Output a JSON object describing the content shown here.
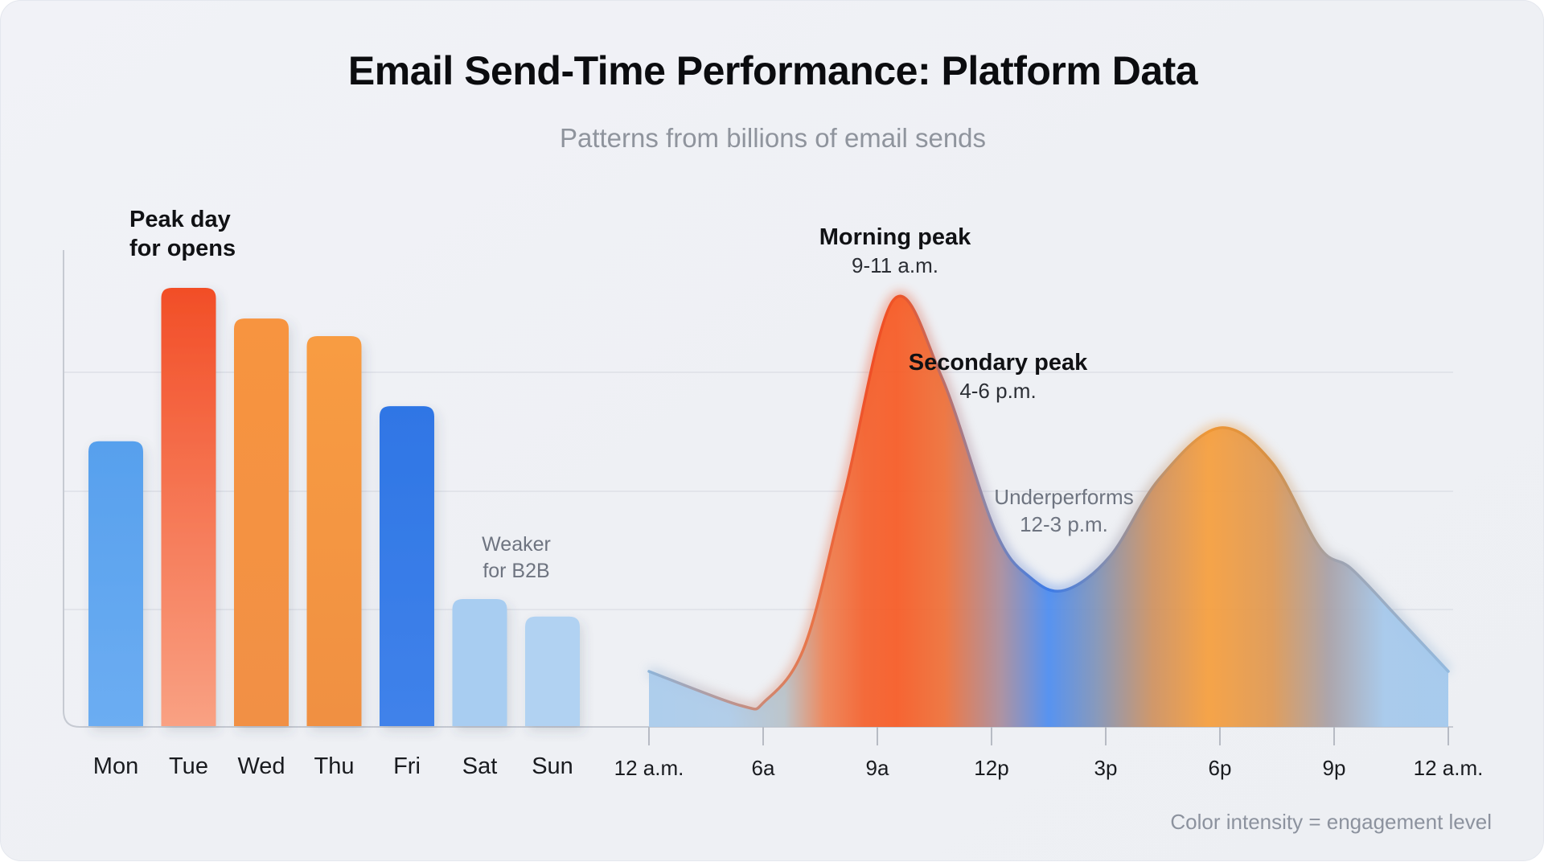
{
  "header": {
    "title": "Email Send-Time Performance: Platform Data",
    "subtitle": "Patterns from billions of email sends"
  },
  "annotations": {
    "peak_day": {
      "line1": "Peak day",
      "line2": "for opens"
    },
    "weaker": {
      "line1": "Weaker",
      "line2": "for B2B"
    },
    "morning_peak": {
      "title": "Morning peak",
      "subtitle": "9-11 a.m."
    },
    "secondary_peak": {
      "title": "Secondary peak",
      "subtitle": "4-6 p.m."
    },
    "underperforms": {
      "line1": "Underperforms",
      "line2": "12-3 p.m."
    }
  },
  "footnote": "Color intensity = engagement level",
  "colors": {
    "card_bg": "#eef0f4",
    "gridline": "#dde0e7",
    "axis": "#c6cad2",
    "tick": "#b7bbc4",
    "text_dark": "#101114",
    "text_gray": "#6e7480",
    "note_gray": "#8c929e"
  },
  "chart_data": [
    {
      "type": "bar",
      "title": "Opens by day of week",
      "categories": [
        "Mon",
        "Tue",
        "Wed",
        "Thu",
        "Fri",
        "Sat",
        "Sun"
      ],
      "values": [
        65,
        100,
        93,
        89,
        73,
        29,
        25
      ],
      "ylim": [
        0,
        100
      ],
      "grid": true,
      "annotation_peak": "Tue = peak day for opens",
      "annotation_weekend": "Sat/Sun weaker for B2B",
      "bar_gradients": [
        [
          "#57a0ed",
          "#6cadf2"
        ],
        [
          "#f24e27",
          "#f9a183"
        ],
        [
          "#f79440",
          "#f19045"
        ],
        [
          "#f89c43",
          "#f09042"
        ],
        [
          "#2f76e5",
          "#4082ea"
        ],
        [
          "#a8cdf1",
          "#a8cdf1"
        ],
        [
          "#b1d2f2",
          "#b1d2f2"
        ]
      ]
    },
    {
      "type": "area",
      "title": "Engagement by time of day",
      "x_tick_labels": [
        "12 a.m.",
        "6a",
        "9a",
        "12p",
        "3p",
        "6p",
        "9p",
        "12 a.m."
      ],
      "ylim": [
        0,
        100
      ],
      "points": [
        {
          "t": 0.0,
          "v": 13
        },
        {
          "t": 0.115,
          "v": 5
        },
        {
          "t": 0.145,
          "v": 6
        },
        {
          "t": 0.195,
          "v": 19
        },
        {
          "t": 0.245,
          "v": 55
        },
        {
          "t": 0.306,
          "v": 100
        },
        {
          "t": 0.366,
          "v": 82
        },
        {
          "t": 0.433,
          "v": 46
        },
        {
          "t": 0.477,
          "v": 35
        },
        {
          "t": 0.52,
          "v": 32
        },
        {
          "t": 0.577,
          "v": 40
        },
        {
          "t": 0.638,
          "v": 58
        },
        {
          "t": 0.713,
          "v": 70
        },
        {
          "t": 0.779,
          "v": 62
        },
        {
          "t": 0.839,
          "v": 42
        },
        {
          "t": 0.879,
          "v": 37
        },
        {
          "t": 0.94,
          "v": 25
        },
        {
          "t": 1.0,
          "v": 13
        }
      ],
      "fill_stops": [
        [
          0.0,
          "#a9cbec"
        ],
        [
          0.1,
          "#aecbe8"
        ],
        [
          0.17,
          "#b9c2c8"
        ],
        [
          0.22,
          "#ee8152"
        ],
        [
          0.27,
          "#f4602c"
        ],
        [
          0.31,
          "#f75a24"
        ],
        [
          0.37,
          "#ee7038"
        ],
        [
          0.44,
          "#a98c9c"
        ],
        [
          0.5,
          "#4c8cf0"
        ],
        [
          0.56,
          "#8093b8"
        ],
        [
          0.63,
          "#ce9160"
        ],
        [
          0.7,
          "#f69e3c"
        ],
        [
          0.78,
          "#de9853"
        ],
        [
          0.85,
          "#a8a0a6"
        ],
        [
          0.92,
          "#a5c8eb"
        ],
        [
          1.0,
          "#a2c8ed"
        ]
      ],
      "stroke_stops": [
        [
          0.0,
          "#8fb4d8"
        ],
        [
          0.2,
          "#e8764a"
        ],
        [
          0.28,
          "#ef4e26"
        ],
        [
          0.31,
          "#ef5426"
        ],
        [
          0.42,
          "#8e86a6"
        ],
        [
          0.5,
          "#3c7be8"
        ],
        [
          0.58,
          "#8b8fa9"
        ],
        [
          0.7,
          "#ef9735"
        ],
        [
          0.78,
          "#d69045"
        ],
        [
          0.86,
          "#9fa3b0"
        ],
        [
          1.0,
          "#93b9de"
        ]
      ]
    }
  ]
}
